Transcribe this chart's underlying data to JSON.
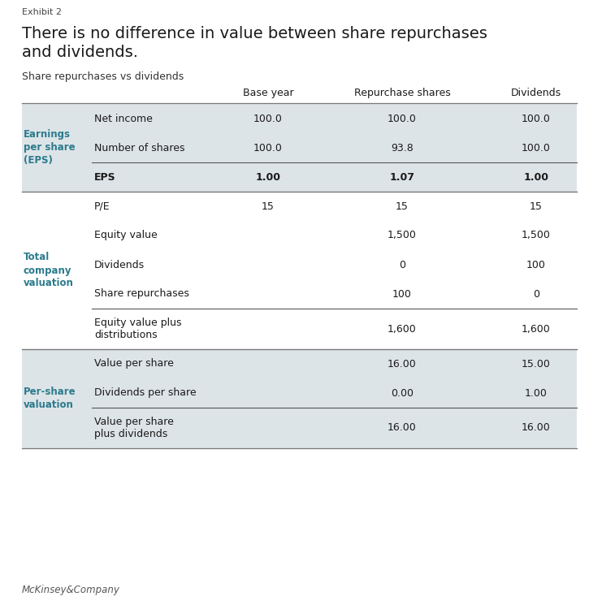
{
  "exhibit_label": "Exhibit 2",
  "title_line1": "There is no difference in value between share repurchases",
  "title_line2": "and dividends.",
  "subtitle": "Share repurchases vs dividends",
  "col_headers": [
    "Base year",
    "Repurchase shares",
    "Dividends"
  ],
  "sections": [
    {
      "section_label": "Earnings\nper share\n(EPS)",
      "section_label_color": "#2b7b8c",
      "bg": "#dde4e8",
      "rows": [
        {
          "label": "Net income",
          "base": "100.0",
          "repurchase": "100.0",
          "dividends": "100.0",
          "bold": false,
          "top_border": false,
          "two_line": false
        },
        {
          "label": "Number of shares",
          "base": "100.0",
          "repurchase": "93.8",
          "dividends": "100.0",
          "bold": false,
          "top_border": false,
          "two_line": false
        },
        {
          "label": "EPS",
          "base": "1.00",
          "repurchase": "1.07",
          "dividends": "1.00",
          "bold": true,
          "top_border": true,
          "two_line": false
        }
      ]
    },
    {
      "section_label": "Total\ncompany\nvaluation",
      "section_label_color": "#2b7b8c",
      "bg": "#ffffff",
      "rows": [
        {
          "label": "P/E",
          "base": "15",
          "repurchase": "15",
          "dividends": "15",
          "bold": false,
          "top_border": false,
          "two_line": false
        },
        {
          "label": "Equity value",
          "base": "",
          "repurchase": "1,500",
          "dividends": "1,500",
          "bold": false,
          "top_border": false,
          "two_line": false
        },
        {
          "label": "Dividends",
          "base": "",
          "repurchase": "0",
          "dividends": "100",
          "bold": false,
          "top_border": false,
          "two_line": false
        },
        {
          "label": "Share repurchases",
          "base": "",
          "repurchase": "100",
          "dividends": "0",
          "bold": false,
          "top_border": false,
          "two_line": false
        },
        {
          "label": "Equity value plus\ndistributions",
          "base": "",
          "repurchase": "1,600",
          "dividends": "1,600",
          "bold": false,
          "top_border": true,
          "two_line": true
        }
      ]
    },
    {
      "section_label": "Per-share\nvaluation",
      "section_label_color": "#2b7b8c",
      "bg": "#dde4e8",
      "rows": [
        {
          "label": "Value per share",
          "base": "",
          "repurchase": "16.00",
          "dividends": "15.00",
          "bold": false,
          "top_border": false,
          "two_line": false
        },
        {
          "label": "Dividends per share",
          "base": "",
          "repurchase": "0.00",
          "dividends": "1.00",
          "bold": false,
          "top_border": false,
          "two_line": false
        },
        {
          "label": "Value per share\nplus dividends",
          "base": "",
          "repurchase": "16.00",
          "dividends": "16.00",
          "bold": false,
          "top_border": true,
          "two_line": true
        }
      ]
    }
  ],
  "footer": "McKinsey&Company",
  "bg_color": "#ffffff",
  "text_color": "#1a1a1a",
  "border_color_dark": "#777777",
  "border_color_light": "#aaaaaa"
}
